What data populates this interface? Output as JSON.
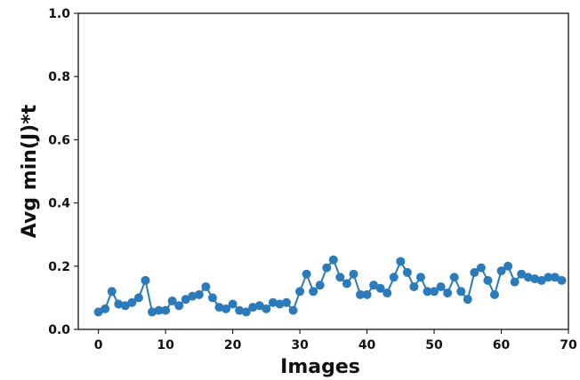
{
  "chart_data": {
    "type": "line",
    "title": "",
    "xlabel": "Images",
    "ylabel": "Avg min(J)*t",
    "xlim": [
      -3,
      70
    ],
    "ylim": [
      0.0,
      1.0
    ],
    "xticks": [
      0,
      10,
      20,
      30,
      40,
      50,
      60,
      70
    ],
    "yticks": [
      0.0,
      0.2,
      0.4,
      0.6,
      0.8,
      1.0
    ],
    "xtick_labels": [
      "0",
      "10",
      "20",
      "30",
      "40",
      "50",
      "60",
      "70"
    ],
    "ytick_labels": [
      "0.0",
      "0.2",
      "0.4",
      "0.6",
      "0.8",
      "1.0"
    ],
    "grid": false,
    "legend": "none",
    "color": "#2b7bba",
    "series": [
      {
        "x": [
          0,
          1,
          2,
          3,
          4,
          5,
          6,
          7,
          8,
          9,
          10,
          11,
          12,
          13,
          14,
          15,
          16,
          17,
          18,
          19,
          20,
          21,
          22,
          23,
          24,
          25,
          26,
          27,
          28,
          29,
          30,
          31,
          32,
          33,
          34,
          35,
          36,
          37,
          38,
          39,
          40,
          41,
          42,
          43,
          44,
          45,
          46,
          47,
          48,
          49,
          50,
          51,
          52,
          53,
          54,
          55,
          56,
          57,
          58,
          59,
          60,
          61,
          62,
          63,
          64,
          65,
          66,
          67,
          68,
          69
        ],
        "values": [
          0.055,
          0.065,
          0.12,
          0.08,
          0.075,
          0.085,
          0.1,
          0.155,
          0.055,
          0.06,
          0.06,
          0.09,
          0.075,
          0.095,
          0.105,
          0.11,
          0.135,
          0.1,
          0.07,
          0.065,
          0.08,
          0.06,
          0.055,
          0.07,
          0.075,
          0.065,
          0.085,
          0.08,
          0.085,
          0.06,
          0.12,
          0.175,
          0.12,
          0.14,
          0.195,
          0.22,
          0.165,
          0.145,
          0.175,
          0.11,
          0.11,
          0.14,
          0.13,
          0.115,
          0.165,
          0.215,
          0.18,
          0.135,
          0.165,
          0.12,
          0.12,
          0.135,
          0.115,
          0.165,
          0.12,
          0.095,
          0.18,
          0.195,
          0.155,
          0.11,
          0.185,
          0.2,
          0.15,
          0.175,
          0.165,
          0.16,
          0.155,
          0.165,
          0.165,
          0.155
        ]
      }
    ]
  }
}
